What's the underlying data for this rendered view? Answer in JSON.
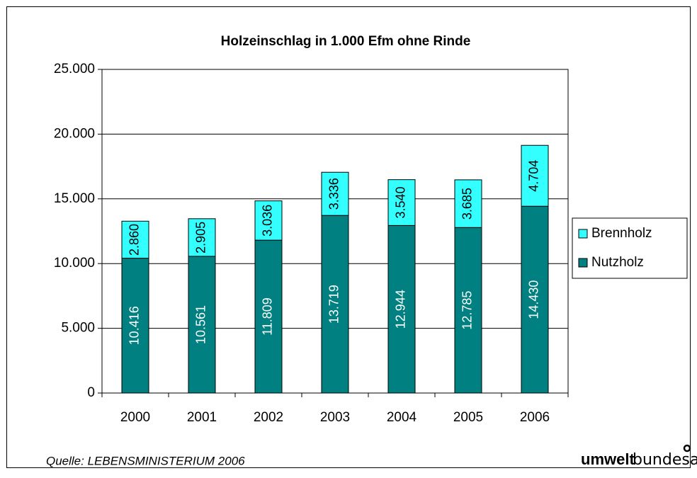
{
  "chart_data": {
    "type": "stacked_bar",
    "title": "Holzeinschlag in 1.000 Efm ohne Rinde",
    "categories": [
      "2000",
      "2001",
      "2002",
      "2003",
      "2004",
      "2005",
      "2006"
    ],
    "series": [
      {
        "name": "Nutzholz",
        "color": "#008080",
        "values": [
          10416,
          10561,
          11809,
          13719,
          12944,
          12785,
          14430
        ],
        "value_labels": [
          "10.416",
          "10.561",
          "11.809",
          "13.719",
          "12.944",
          "12.785",
          "14.430"
        ]
      },
      {
        "name": "Brennholz",
        "color": "#33ffff",
        "values": [
          2860,
          2905,
          3036,
          3336,
          3540,
          3685,
          4704
        ],
        "value_labels": [
          "2.860",
          "2.905",
          "3.036",
          "3.336",
          "3.540",
          "3.685",
          "4.704"
        ]
      }
    ],
    "ylim": [
      0,
      25000
    ],
    "yticks": [
      0,
      {
        "value": 5000,
        "label": "5.000"
      },
      {
        "value": 10000,
        "label": "10.000"
      },
      {
        "value": 15000,
        "label": "15.000"
      },
      {
        "value": 20000,
        "label": "20.000"
      },
      {
        "value": 25000,
        "label": "25.000"
      }
    ],
    "grid": true,
    "legend": "right",
    "source": "Quelle: LEBENSMINISTERIUM 2006",
    "logo_bold": "umwelt",
    "logo_light": "bundesamt"
  }
}
